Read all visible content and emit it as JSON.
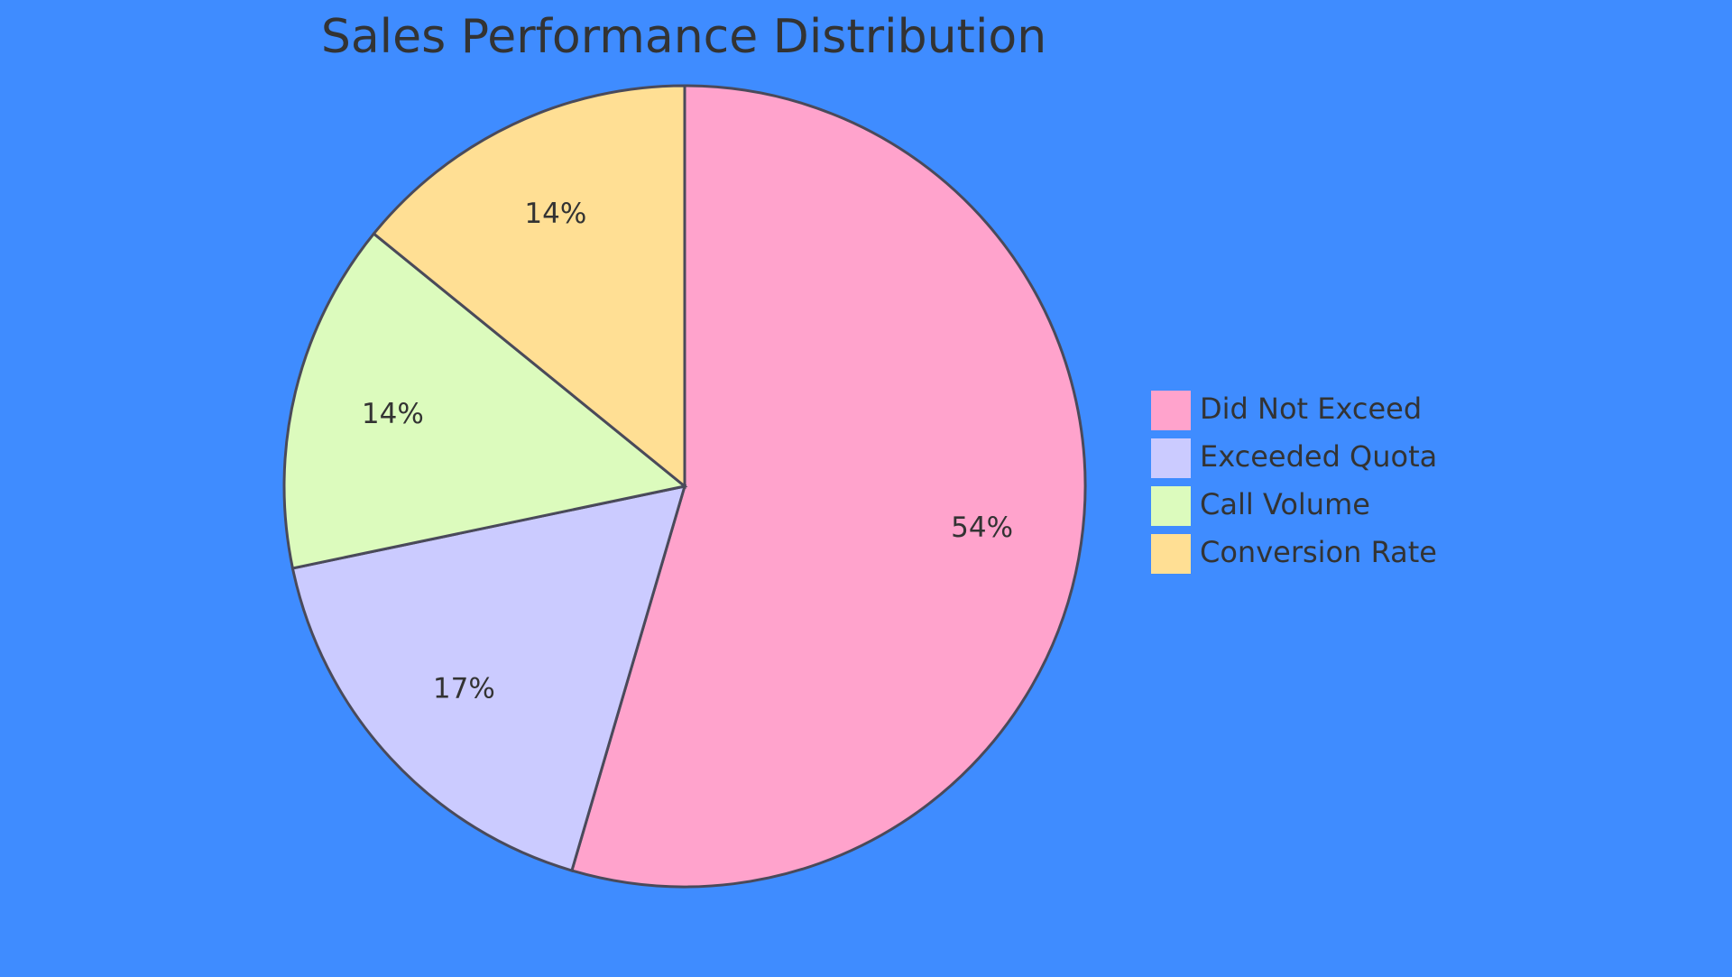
{
  "chart_data": {
    "type": "pie",
    "title": "Sales Performance Distribution",
    "categories": [
      "Did Not Exceed",
      "Exceeded Quota",
      "Call Volume",
      "Conversion Rate"
    ],
    "values": [
      54,
      17,
      14,
      14
    ],
    "labels": [
      "54%",
      "17%",
      "14%",
      "14%"
    ],
    "colors": [
      "#ffa3cc",
      "#cbcbff",
      "#dcfbbd",
      "#ffdf94"
    ],
    "legend": "right"
  },
  "style": {
    "background": "#3f8cff",
    "stroke": "#4a4a5a",
    "text": "#333333"
  }
}
